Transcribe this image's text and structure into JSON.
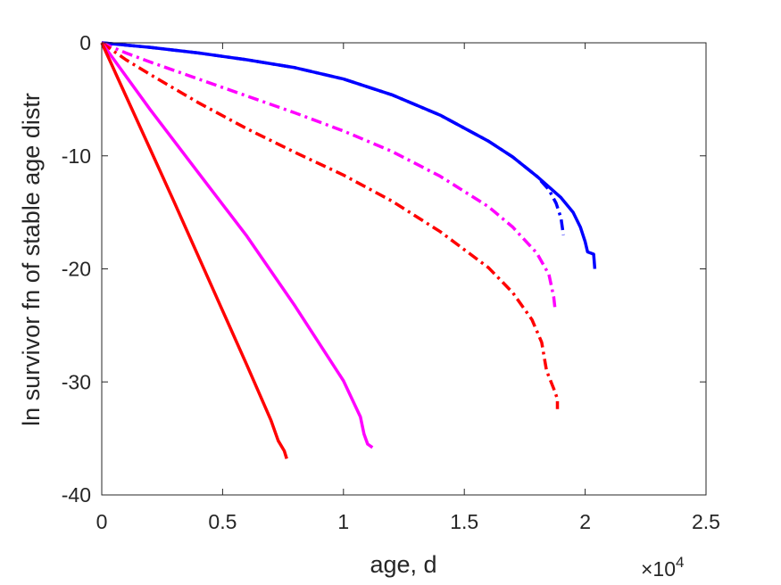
{
  "chart_data": {
    "type": "line",
    "title": "",
    "xlabel": "age, d",
    "ylabel": "ln survivor fn of stable age distr",
    "x_multiplier_label": "×10",
    "x_multiplier_exponent": "4",
    "xlim": [
      0,
      25000
    ],
    "ylim": [
      -40,
      0
    ],
    "xticks": [
      0,
      5000,
      10000,
      15000,
      20000,
      25000
    ],
    "xtick_labels": [
      "0",
      "0.5",
      "1",
      "1.5",
      "2",
      "2.5"
    ],
    "yticks": [
      0,
      -10,
      -20,
      -30,
      -40
    ],
    "ytick_labels": [
      "0",
      "-10",
      "-20",
      "-30",
      "-40"
    ],
    "grid": false,
    "legend": "none",
    "series": [
      {
        "color": "#0000ff",
        "style": "solid",
        "points": [
          [
            0,
            0
          ],
          [
            2000,
            -0.4
          ],
          [
            4000,
            -0.9
          ],
          [
            6000,
            -1.5
          ],
          [
            8000,
            -2.2
          ],
          [
            10000,
            -3.2
          ],
          [
            12000,
            -4.6
          ],
          [
            14000,
            -6.4
          ],
          [
            16000,
            -8.7
          ],
          [
            17000,
            -10.1
          ],
          [
            18000,
            -11.8
          ],
          [
            19000,
            -13.7
          ],
          [
            19500,
            -15.0
          ],
          [
            19800,
            -16.3
          ],
          [
            20000,
            -17.6
          ],
          [
            20100,
            -18.5
          ],
          [
            20350,
            -18.7
          ],
          [
            20400,
            -20.0
          ]
        ]
      },
      {
        "color": "#0000ff",
        "style": "dashdot",
        "points": [
          [
            0,
            0
          ],
          [
            2000,
            -0.4
          ],
          [
            4000,
            -0.9
          ],
          [
            6000,
            -1.5
          ],
          [
            8000,
            -2.2
          ],
          [
            10000,
            -3.2
          ],
          [
            12000,
            -4.6
          ],
          [
            14000,
            -6.4
          ],
          [
            16000,
            -8.7
          ],
          [
            17000,
            -10.1
          ],
          [
            18000,
            -11.8
          ],
          [
            18500,
            -13.0
          ],
          [
            18800,
            -14.2
          ],
          [
            19000,
            -15.5
          ],
          [
            19100,
            -17.0
          ]
        ]
      },
      {
        "color": "#ff00ff",
        "style": "dashdot",
        "points": [
          [
            0,
            0
          ],
          [
            1000,
            -0.9
          ],
          [
            2000,
            -1.7
          ],
          [
            4000,
            -3.2
          ],
          [
            6000,
            -4.7
          ],
          [
            8000,
            -6.2
          ],
          [
            10000,
            -7.8
          ],
          [
            12000,
            -9.6
          ],
          [
            14000,
            -11.8
          ],
          [
            16000,
            -14.5
          ],
          [
            17000,
            -16.3
          ],
          [
            18000,
            -18.6
          ],
          [
            18500,
            -20.5
          ],
          [
            18700,
            -22.5
          ],
          [
            18750,
            -23.5
          ]
        ]
      },
      {
        "color": "#ff0000",
        "style": "dashdot",
        "points": [
          [
            0,
            0
          ],
          [
            1000,
            -1.5
          ],
          [
            2000,
            -2.8
          ],
          [
            4000,
            -5.3
          ],
          [
            6000,
            -7.6
          ],
          [
            8000,
            -9.7
          ],
          [
            10000,
            -11.7
          ],
          [
            12000,
            -14.0
          ],
          [
            14000,
            -16.7
          ],
          [
            16000,
            -19.9
          ],
          [
            17000,
            -22.1
          ],
          [
            17800,
            -24.5
          ],
          [
            18200,
            -26.5
          ],
          [
            18400,
            -29.0
          ],
          [
            18700,
            -30.6
          ],
          [
            18850,
            -31.5
          ],
          [
            18850,
            -32.4
          ]
        ]
      },
      {
        "color": "#ff00ff",
        "style": "solid",
        "points": [
          [
            0,
            0
          ],
          [
            2000,
            -5.9
          ],
          [
            4000,
            -11.5
          ],
          [
            6000,
            -17.1
          ],
          [
            8000,
            -23.3
          ],
          [
            10000,
            -29.9
          ],
          [
            10700,
            -33.1
          ],
          [
            10850,
            -34.6
          ],
          [
            11000,
            -35.5
          ],
          [
            11200,
            -35.8
          ]
        ]
      },
      {
        "color": "#ff0000",
        "style": "solid",
        "points": [
          [
            0,
            0
          ],
          [
            1000,
            -4.7
          ],
          [
            2000,
            -9.4
          ],
          [
            3000,
            -14.1
          ],
          [
            4000,
            -18.9
          ],
          [
            5000,
            -23.7
          ],
          [
            6000,
            -28.5
          ],
          [
            7000,
            -33.4
          ],
          [
            7300,
            -35.2
          ],
          [
            7550,
            -36.1
          ],
          [
            7650,
            -36.8
          ]
        ]
      }
    ]
  }
}
